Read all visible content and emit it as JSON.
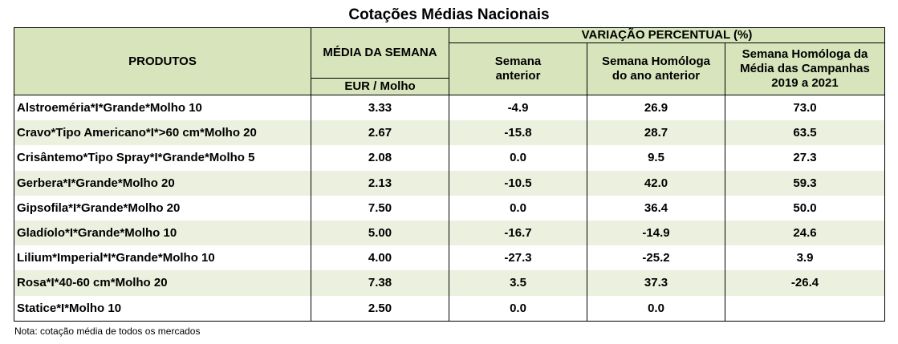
{
  "title": "Cotações Médias Nacionais",
  "headers": {
    "produtos": "PRODUTOS",
    "media_semana": "MÉDIA DA SEMANA",
    "unit": "EUR / Molho",
    "variacao": "VARIAÇÃO PERCENTUAL (%)",
    "semana_anterior_l1": "Semana",
    "semana_anterior_l2": "anterior",
    "homologa_l1": "Semana Homóloga",
    "homologa_l2": "do ano anterior",
    "homologa_media_l1": "Semana Homóloga da",
    "homologa_media_l2": "Média das Campanhas",
    "homologa_media_l3": "2019 a 2021"
  },
  "rows": [
    {
      "produto": "Alstroeméria*I*Grande*Molho 10",
      "media": "3.33",
      "sem_ant": "-4.9",
      "hom_ano": "26.9",
      "hom_media": "73.0"
    },
    {
      "produto": "Cravo*Tipo Americano*I*>60 cm*Molho 20",
      "media": "2.67",
      "sem_ant": "-15.8",
      "hom_ano": "28.7",
      "hom_media": "63.5"
    },
    {
      "produto": "Crisântemo*Tipo Spray*I*Grande*Molho 5",
      "media": "2.08",
      "sem_ant": "0.0",
      "hom_ano": "9.5",
      "hom_media": "27.3"
    },
    {
      "produto": "Gerbera*I*Grande*Molho 20",
      "media": "2.13",
      "sem_ant": "-10.5",
      "hom_ano": "42.0",
      "hom_media": "59.3"
    },
    {
      "produto": "Gipsofila*I*Grande*Molho 20",
      "media": "7.50",
      "sem_ant": "0.0",
      "hom_ano": "36.4",
      "hom_media": "50.0"
    },
    {
      "produto": "Gladíolo*I*Grande*Molho 10",
      "media": "5.00",
      "sem_ant": "-16.7",
      "hom_ano": "-14.9",
      "hom_media": "24.6"
    },
    {
      "produto": "Lilium*Imperial*I*Grande*Molho 10",
      "media": "4.00",
      "sem_ant": "-27.3",
      "hom_ano": "-25.2",
      "hom_media": "3.9"
    },
    {
      "produto": "Rosa*I*40-60 cm*Molho 20",
      "media": "7.38",
      "sem_ant": "3.5",
      "hom_ano": "37.3",
      "hom_media": "-26.4"
    },
    {
      "produto": "Statice*I*Molho 10",
      "media": "2.50",
      "sem_ant": "0.0",
      "hom_ano": "0.0",
      "hom_media": ""
    }
  ],
  "note": "Nota: cotação média de todos os mercados"
}
